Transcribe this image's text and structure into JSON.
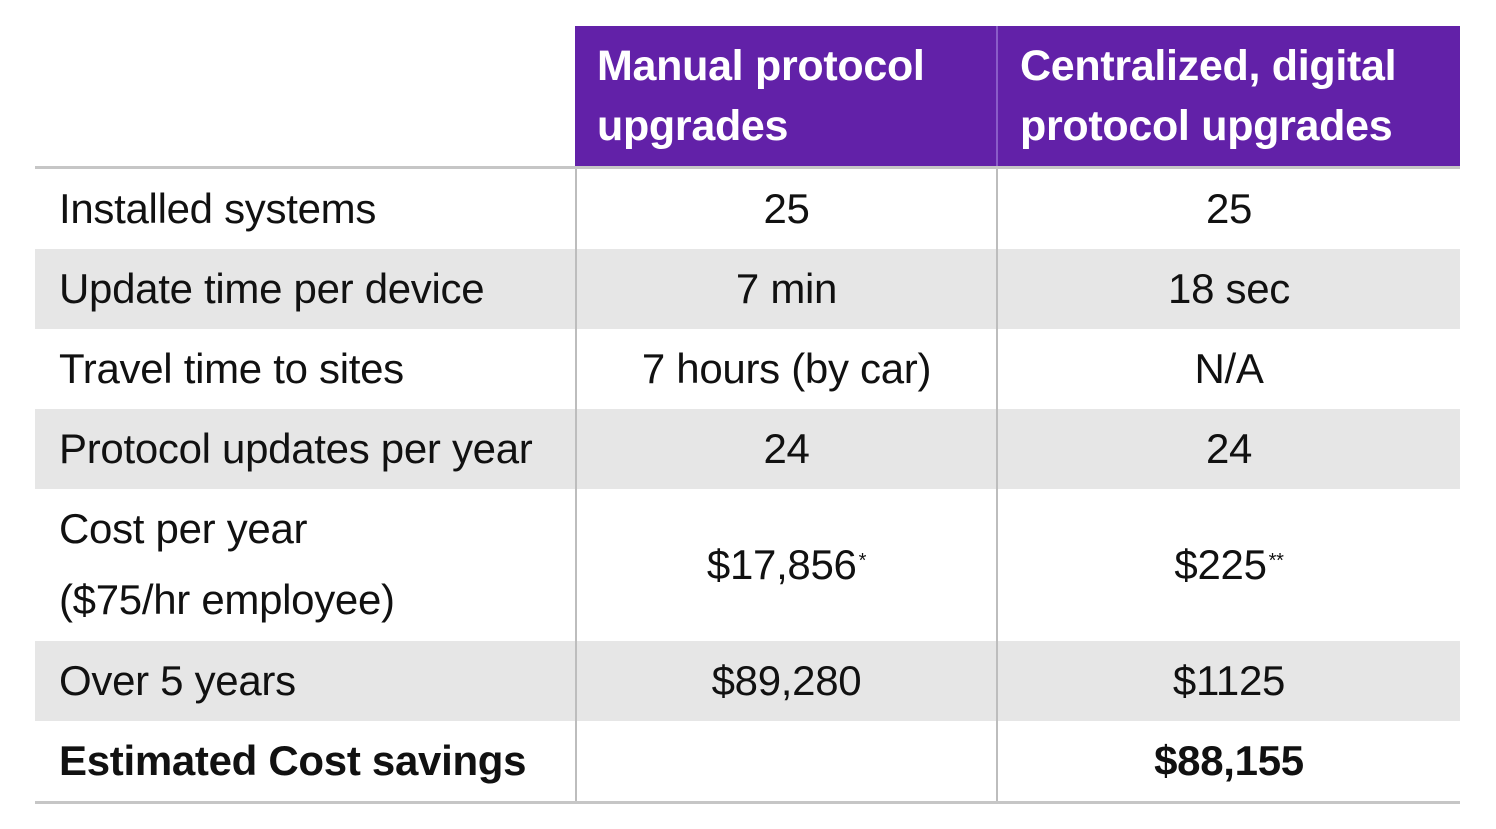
{
  "header": {
    "col1": "Manual protocol upgrades",
    "col2": "Centralized, digital protocol upgrades"
  },
  "rows": [
    {
      "label": "Installed systems",
      "manual": "25",
      "digital": "25"
    },
    {
      "label": "Update time per device",
      "manual": "7 min",
      "digital": "18 sec"
    },
    {
      "label": "Travel time to sites",
      "manual": "7 hours (by car)",
      "digital": "N/A"
    },
    {
      "label": "Protocol updates per year",
      "manual": "24",
      "digital": "24"
    },
    {
      "label_line1": "Cost per year",
      "label_line2": "($75/hr employee)",
      "manual": "$17,856",
      "manual_mark": "*",
      "digital": "$225",
      "digital_mark": "**"
    },
    {
      "label": "Over 5 years",
      "manual": "$89,280",
      "digital": "$1125"
    },
    {
      "label": "Estimated Cost savings",
      "manual": "",
      "digital": "$88,155"
    }
  ],
  "colors": {
    "header_bg": "#6221a8",
    "header_text": "#ffffff",
    "shaded_row": "#e6e6e6"
  }
}
